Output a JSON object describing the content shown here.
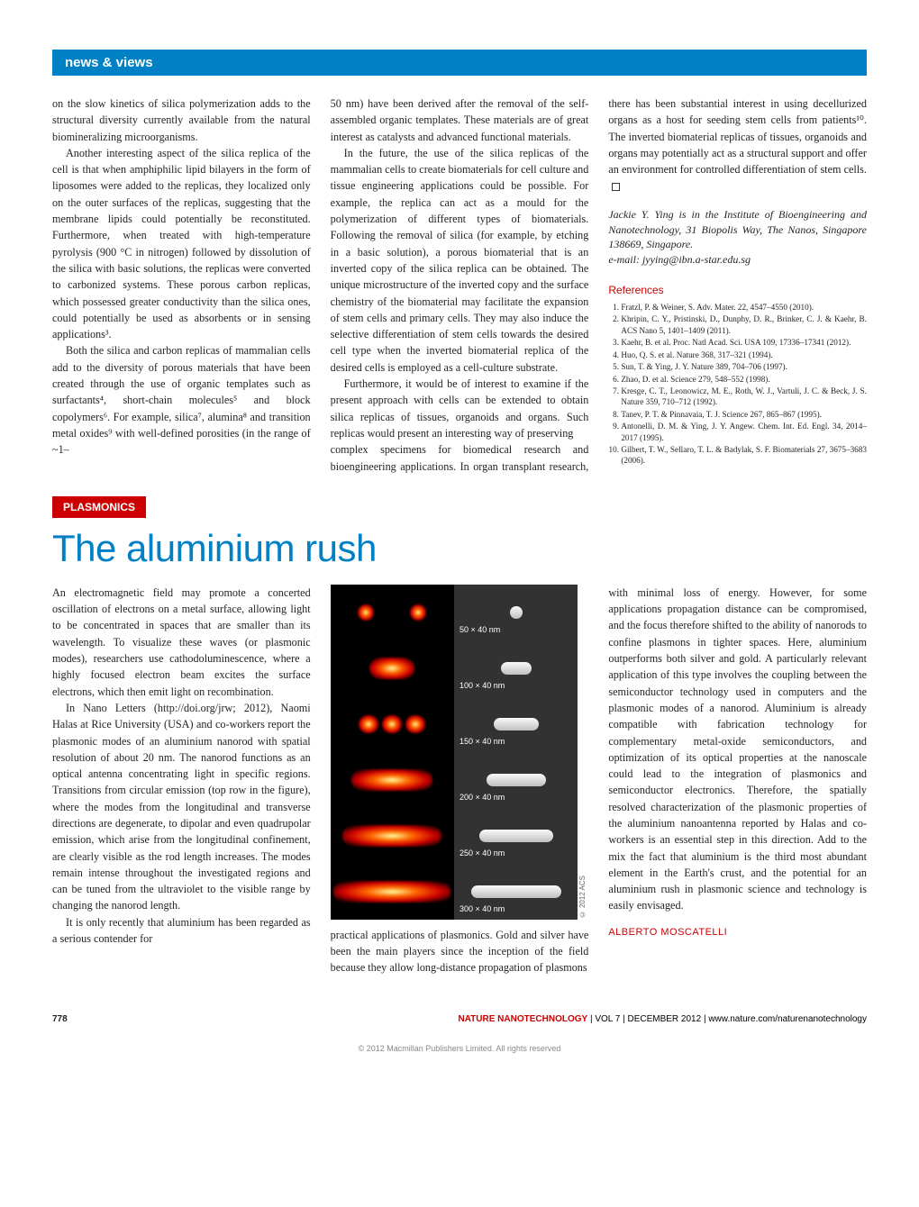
{
  "header_section": "news & views",
  "top_article": {
    "col1": {
      "p1": "on the slow kinetics of silica polymerization adds to the structural diversity currently available from the natural biomineralizing microorganisms.",
      "p2": "Another interesting aspect of the silica replica of the cell is that when amphiphilic lipid bilayers in the form of liposomes were added to the replicas, they localized only on the outer surfaces of the replicas, suggesting that the membrane lipids could potentially be reconstituted. Furthermore, when treated with high-temperature pyrolysis (900 °C in nitrogen) followed by dissolution of the silica with basic solutions, the replicas were converted to carbonized systems. These porous carbon replicas, which possessed greater conductivity than the silica ones, could potentially be used as absorbents or in sensing applications³.",
      "p3": "Both the silica and carbon replicas of mammalian cells add to the diversity of porous materials that have been created through the use of organic templates such as surfactants⁴, short-chain molecules⁵ and block copolymers⁶. For example, silica⁷, alumina⁸ and transition metal oxides⁹ with well-defined porosities (in the range of ~1–"
    },
    "col2": {
      "p1": "50 nm) have been derived after the removal of the self-assembled organic templates. These materials are of great interest as catalysts and advanced functional materials.",
      "p2": "In the future, the use of the silica replicas of the mammalian cells to create biomaterials for cell culture and tissue engineering applications could be possible. For example, the replica can act as a mould for the polymerization of different types of biomaterials. Following the removal of silica (for example, by etching in a basic solution), a porous biomaterial that is an inverted copy of the silica replica can be obtained. The unique microstructure of the inverted copy and the surface chemistry of the biomaterial may facilitate the expansion of stem cells and primary cells. They may also induce the selective differentiation of stem cells towards the desired cell type when the inverted biomaterial replica of the desired cells is employed as a cell-culture substrate.",
      "p3": "Furthermore, it would be of interest to examine if the present approach with cells can be extended to obtain silica replicas of tissues, organoids and organs. Such replicas would present an interesting way of preserving"
    },
    "col3": {
      "p1": "complex specimens for biomedical research and bioengineering applications. In organ transplant research, there has been substantial interest in using decellurized organs as a host for seeding stem cells from patients¹⁰. The inverted biomaterial replicas of tissues, organoids and organs may potentially act as a structural support and offer an environment for controlled differentiation of stem cells."
    },
    "author": {
      "line1": "Jackie Y. Ying is in the Institute of Bioengineering and Nanotechnology, 31 Biopolis Way, The Nanos, Singapore 138669, Singapore.",
      "line2": "e-mail: jyying@ibn.a-star.edu.sg"
    },
    "refs_title": "References",
    "references": [
      "Fratzl, P. & Weiner, S. Adv. Mater. 22, 4547–4550 (2010).",
      "Khripin, C. Y., Pristinski, D., Dunphy, D. R., Brinker, C. J. & Kaehr, B. ACS Nano 5, 1401–1409 (2011).",
      "Kaehr, B. et al. Proc. Natl Acad. Sci. USA 109, 17336–17341 (2012).",
      "Huo, Q. S. et al. Nature 368, 317–321 (1994).",
      "Sun, T. & Ying, J. Y. Nature 389, 704–706 (1997).",
      "Zhao, D. et al. Science 279, 548–552 (1998).",
      "Kresge, C. T., Leonowicz, M. E., Roth, W. J., Vartuli, J. C. & Beck, J. S. Nature 359, 710–712 (1992).",
      "Tanev, P. T. & Pinnavaia, T. J. Science 267, 865–867 (1995).",
      "Antonelli, D. M. & Ying, J. Y. Angew. Chem. Int. Ed. Engl. 34, 2014–2017 (1995).",
      "Gilbert, T. W., Sellaro, T. L. & Badylak, S. F. Biomaterials 27, 3675–3683 (2006)."
    ]
  },
  "bottom_article": {
    "section_tag": "PLASMONICS",
    "title": "The aluminium rush",
    "col1": {
      "p1": "An electromagnetic field may promote a concerted oscillation of electrons on a metal surface, allowing light to be concentrated in spaces that are smaller than its wavelength. To visualize these waves (or plasmonic modes), researchers use cathodoluminescence, where a highly focused electron beam excites the surface electrons, which then emit light on recombination.",
      "p2": "In Nano Letters (http://doi.org/jrw; 2012), Naomi Halas at Rice University (USA) and co-workers report the plasmonic modes of an aluminium nanorod with spatial resolution of about 20 nm. The nanorod functions as an optical antenna concentrating light in specific regions. Transitions from circular emission (top row in the figure), where the modes from the longitudinal and transverse directions are degenerate, to dipolar and even quadrupolar emission, which arise from the longitudinal confinement, are clearly visible as the rod length increases. The modes remain intense throughout the investigated regions and can be tuned from the ultraviolet to the visible range by changing the nanorod length.",
      "p3": "It is only recently that aluminium has been regarded as a serious contender for"
    },
    "col2caption": "practical applications of plasmonics. Gold and silver have been the main players since the inception of the field because they allow long-distance propagation of plasmons",
    "col3": {
      "p1": "with minimal loss of energy. However, for some applications propagation distance can be compromised, and the focus therefore shifted to the ability of nanorods to confine plasmons in tighter spaces. Here, aluminium outperforms both silver and gold. A particularly relevant application of this type involves the coupling between the semiconductor technology used in computers and the plasmonic modes of a nanorod. Aluminium is already compatible with fabrication technology for complementary metal-oxide semiconductors, and optimization of its optical properties at the nanoscale could lead to the integration of plasmonics and semiconductor electronics. Therefore, the spatially resolved characterization of the plasmonic properties of the aluminium nanoantenna reported by Halas and co-workers is an essential step in this direction. Add to the mix the fact that aluminium is the third most abundant element in the Earth's crust, and the potential for an aluminium rush in plasmonic science and technology is easily envisaged."
    },
    "author": "ALBERTO MOSCATELLI",
    "figure": {
      "labels": [
        "50 × 40 nm",
        "100 × 40 nm",
        "150 × 40 nm",
        "200 × 40 nm",
        "250 × 40 nm",
        "300 × 40 nm"
      ],
      "copyright": "© 2012 ACS",
      "rod_widths_glow": [
        24,
        50,
        70,
        90,
        110,
        130
      ],
      "rod_widths_sem": [
        14,
        34,
        50,
        66,
        82,
        100
      ]
    }
  },
  "footer": {
    "page": "778",
    "journal": "NATURE NANOTECHNOLOGY",
    "vol": " | VOL 7 | DECEMBER 2012 | www.nature.com/naturenanotechnology"
  },
  "bottom_copy": "© 2012 Macmillan Publishers Limited. All rights reserved"
}
